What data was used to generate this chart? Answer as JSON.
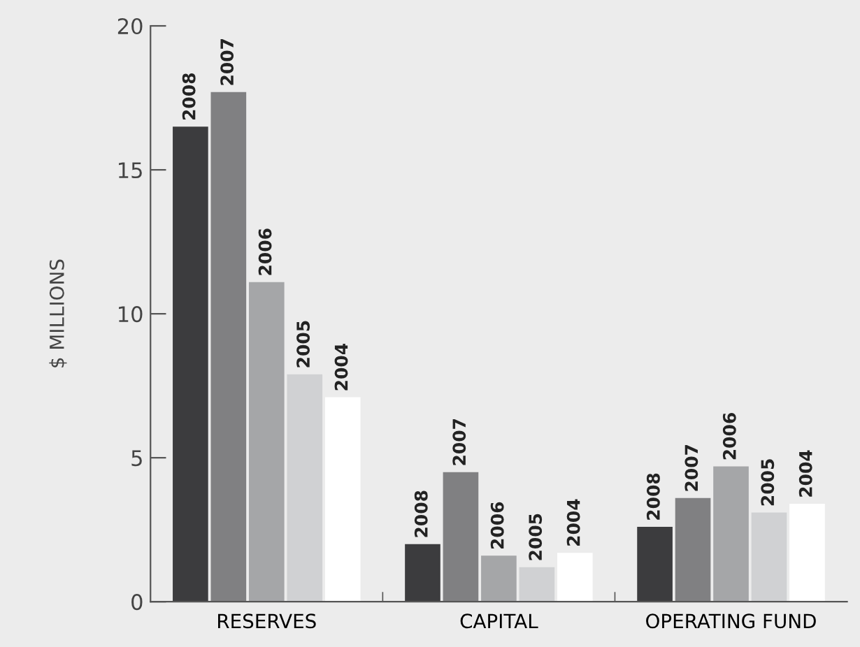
{
  "chart_data": {
    "type": "bar",
    "ylabel": "$ MILLIONS",
    "categories": [
      "RESERVES",
      "CAPITAL",
      "OPERATING FUND"
    ],
    "series": [
      {
        "name": "2008",
        "color": "#3c3c3e",
        "values": [
          16.5,
          2.0,
          2.6
        ]
      },
      {
        "name": "2007",
        "color": "#808082",
        "values": [
          17.7,
          4.5,
          3.6
        ]
      },
      {
        "name": "2006",
        "color": "#a5a6a8",
        "values": [
          11.1,
          1.6,
          4.7
        ]
      },
      {
        "name": "2005",
        "color": "#d0d1d3",
        "values": [
          7.9,
          1.2,
          3.1
        ]
      },
      {
        "name": "2004",
        "color": "#ffffff",
        "values": [
          7.1,
          1.7,
          3.4
        ]
      }
    ],
    "ylim": [
      0,
      20
    ],
    "yticks": [
      0,
      5,
      10,
      15,
      20
    ],
    "grid": false,
    "legend": false
  }
}
